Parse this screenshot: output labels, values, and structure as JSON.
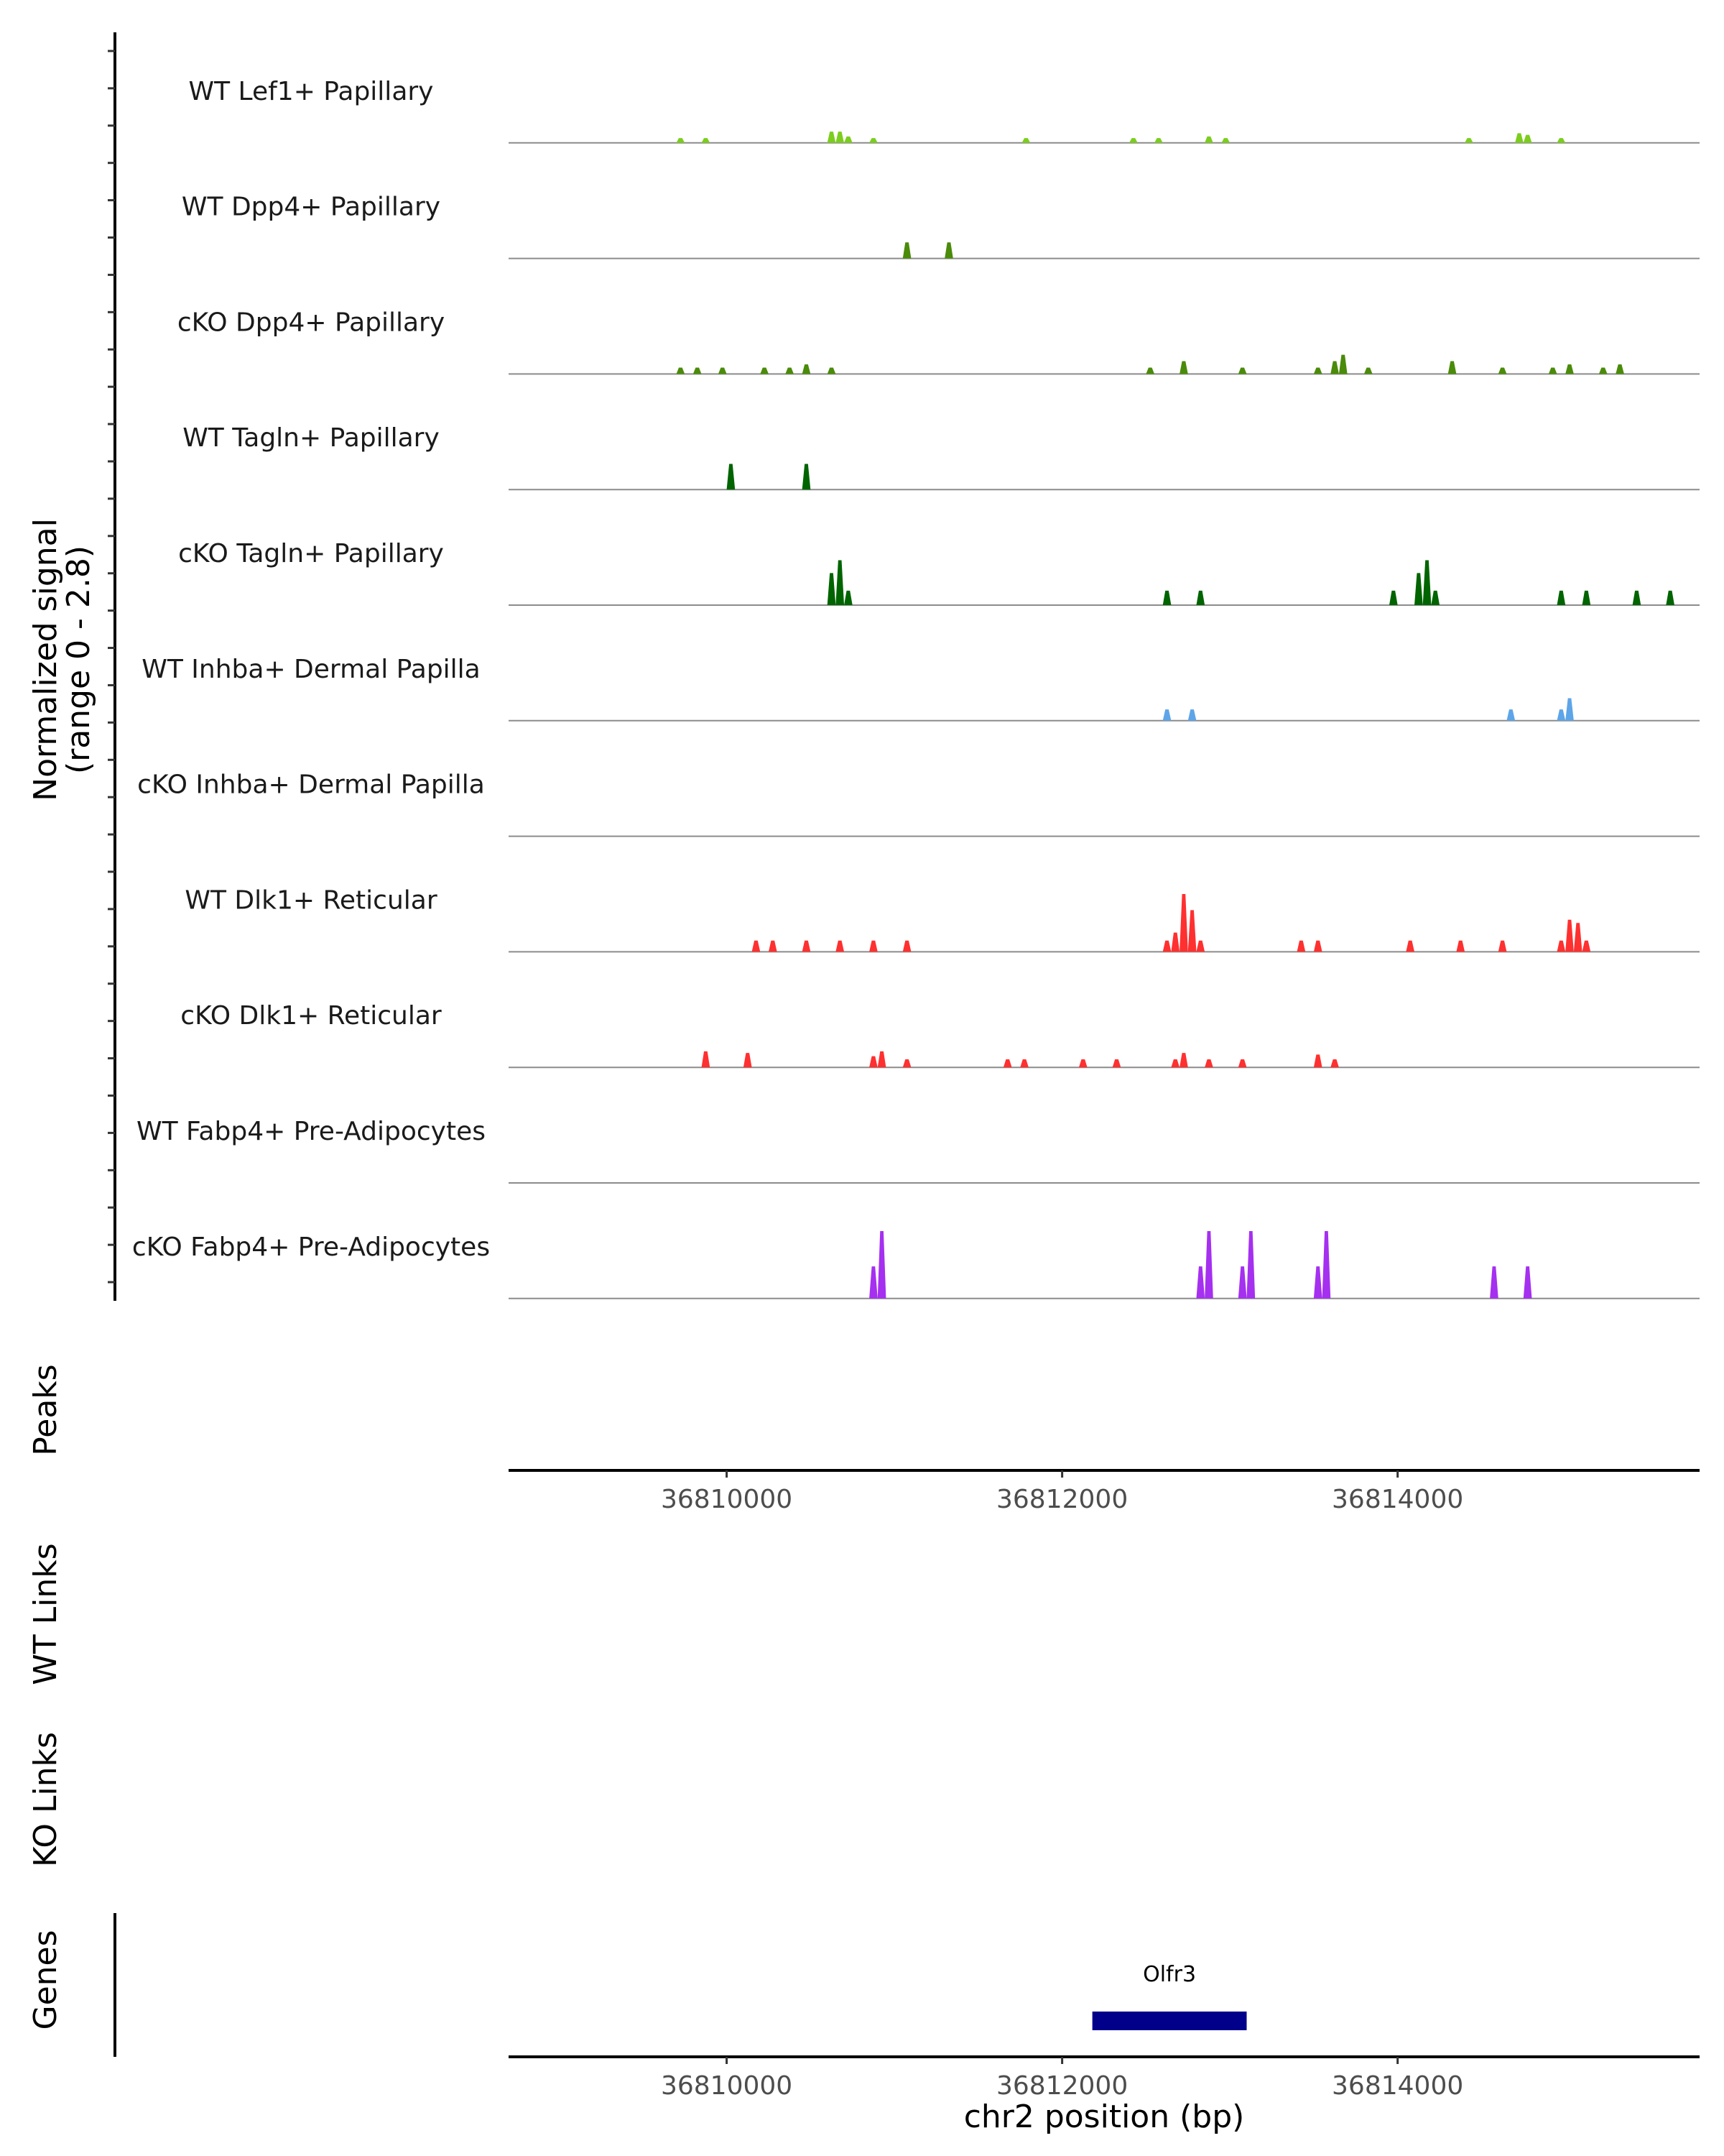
{
  "chart_data": {
    "type": "coverage",
    "region": "chr2:36808700-36815800",
    "xlabel": "chr2 position (bp)",
    "x_ticks": [
      36810000,
      36812000,
      36814000
    ],
    "x_tick_labels": [
      "36810000",
      "36812000",
      "36814000"
    ],
    "xlim": [
      36808700,
      36815800
    ],
    "ylabel": "Normalized signal",
    "ylabel_sub": "(range 0 - 2.8)",
    "ylim": [
      0,
      2.8
    ],
    "tracks": [
      {
        "name": "WT Lef1+ Papillary",
        "color": "#7CCD1E",
        "bins": [
          [
            36809700,
            0.15
          ],
          [
            36809850,
            0.15
          ],
          [
            36810600,
            0.35
          ],
          [
            36810650,
            0.35
          ],
          [
            36810700,
            0.2
          ],
          [
            36810850,
            0.15
          ],
          [
            36811760,
            0.15
          ],
          [
            36812400,
            0.15
          ],
          [
            36812550,
            0.15
          ],
          [
            36812850,
            0.2
          ],
          [
            36812950,
            0.15
          ],
          [
            36814400,
            0.15
          ],
          [
            36814700,
            0.3
          ],
          [
            36814750,
            0.25
          ],
          [
            36814950,
            0.15
          ]
        ]
      },
      {
        "name": "WT Dpp4+ Papillary",
        "color": "#4A8B0A",
        "bins": [
          [
            36811050,
            0.5
          ],
          [
            36811300,
            0.5
          ]
        ]
      },
      {
        "name": "cKO Dpp4+ Papillary",
        "color": "#4A8B0A",
        "bins": [
          [
            36809700,
            0.2
          ],
          [
            36809800,
            0.2
          ],
          [
            36809950,
            0.2
          ],
          [
            36810200,
            0.2
          ],
          [
            36810350,
            0.2
          ],
          [
            36810450,
            0.3
          ],
          [
            36810600,
            0.2
          ],
          [
            36812500,
            0.2
          ],
          [
            36812700,
            0.4
          ],
          [
            36813050,
            0.2
          ],
          [
            36813500,
            0.2
          ],
          [
            36813600,
            0.4
          ],
          [
            36813650,
            0.6
          ],
          [
            36813800,
            0.2
          ],
          [
            36814300,
            0.4
          ],
          [
            36814600,
            0.2
          ],
          [
            36814900,
            0.2
          ],
          [
            36815000,
            0.3
          ],
          [
            36815200,
            0.2
          ],
          [
            36815300,
            0.3
          ]
        ]
      },
      {
        "name": "WT Tagln+ Papillary",
        "color": "#006400",
        "bins": [
          [
            36810000,
            0.8
          ],
          [
            36810450,
            0.8
          ]
        ]
      },
      {
        "name": "cKO Tagln+ Papillary",
        "color": "#006400",
        "bins": [
          [
            36810600,
            1.0
          ],
          [
            36810650,
            1.4
          ],
          [
            36810700,
            0.45
          ],
          [
            36812600,
            0.45
          ],
          [
            36812800,
            0.45
          ],
          [
            36813950,
            0.45
          ],
          [
            36814100,
            1.0
          ],
          [
            36814150,
            1.4
          ],
          [
            36814200,
            0.45
          ],
          [
            36814950,
            0.45
          ],
          [
            36815100,
            0.45
          ],
          [
            36815400,
            0.45
          ],
          [
            36815600,
            0.45
          ]
        ]
      },
      {
        "name": "WT Inhba+ Dermal Papilla",
        "color": "#5DA5E8",
        "bins": [
          [
            36812600,
            0.35
          ],
          [
            36812750,
            0.35
          ],
          [
            36814650,
            0.35
          ],
          [
            36814950,
            0.35
          ],
          [
            36815000,
            0.7
          ]
        ]
      },
      {
        "name": "cKO Inhba+ Dermal Papilla",
        "color": "#5DA5E8",
        "bins": []
      },
      {
        "name": "WT Dlk1+ Reticular",
        "color": "#FF3030",
        "bins": [
          [
            36810150,
            0.35
          ],
          [
            36810250,
            0.35
          ],
          [
            36810450,
            0.35
          ],
          [
            36810650,
            0.35
          ],
          [
            36810850,
            0.35
          ],
          [
            36811050,
            0.35
          ],
          [
            36812600,
            0.35
          ],
          [
            36812650,
            0.6
          ],
          [
            36812700,
            1.8
          ],
          [
            36812750,
            1.3
          ],
          [
            36812800,
            0.35
          ],
          [
            36813400,
            0.35
          ],
          [
            36813500,
            0.35
          ],
          [
            36814050,
            0.35
          ],
          [
            36814350,
            0.35
          ],
          [
            36814600,
            0.35
          ],
          [
            36814950,
            0.35
          ],
          [
            36815000,
            1.0
          ],
          [
            36815050,
            0.9
          ],
          [
            36815100,
            0.35
          ]
        ]
      },
      {
        "name": "cKO Dlk1+ Reticular",
        "color": "#FF3030",
        "bins": [
          [
            36809850,
            0.5
          ],
          [
            36810100,
            0.45
          ],
          [
            36810850,
            0.35
          ],
          [
            36810900,
            0.5
          ],
          [
            36811050,
            0.25
          ],
          [
            36811650,
            0.25
          ],
          [
            36811750,
            0.25
          ],
          [
            36812100,
            0.25
          ],
          [
            36812300,
            0.25
          ],
          [
            36812650,
            0.25
          ],
          [
            36812700,
            0.45
          ],
          [
            36812850,
            0.25
          ],
          [
            36813050,
            0.25
          ],
          [
            36813500,
            0.4
          ],
          [
            36813600,
            0.25
          ]
        ]
      },
      {
        "name": "WT Fabp4+ Pre-Adipocytes",
        "color": "#A530F0",
        "bins": []
      },
      {
        "name": "cKO Fabp4+ Pre-Adipocytes",
        "color": "#A530F0",
        "bins": [
          [
            36810850,
            1.0
          ],
          [
            36810900,
            2.1
          ],
          [
            36812800,
            1.0
          ],
          [
            36812850,
            2.1
          ],
          [
            36813050,
            1.0
          ],
          [
            36813100,
            2.1
          ],
          [
            36813500,
            1.0
          ],
          [
            36813550,
            2.1
          ],
          [
            36814550,
            1.0
          ],
          [
            36814750,
            1.0
          ]
        ]
      }
    ],
    "annotation_tracks": [
      "Peaks",
      "WT Links",
      "KO Links",
      "Genes"
    ],
    "genes": [
      {
        "name": "Olfr3",
        "start": 36812180,
        "end": 36813100
      }
    ]
  }
}
